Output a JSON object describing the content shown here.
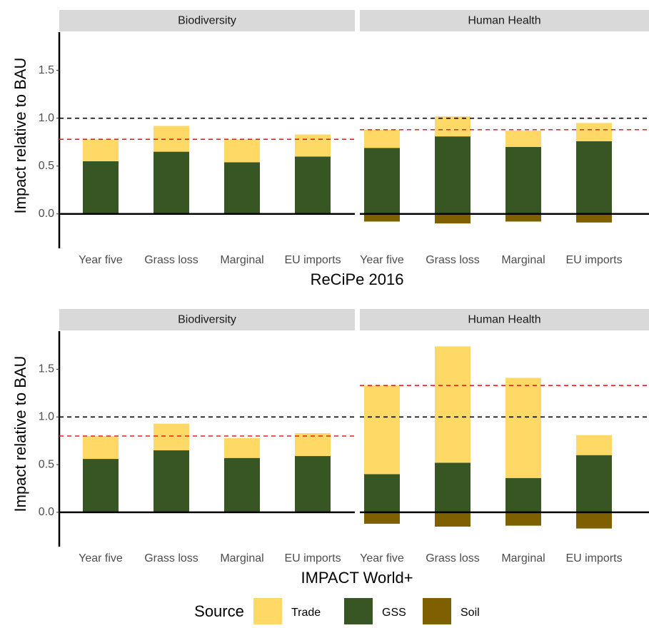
{
  "chart_data": [
    {
      "type": "bar",
      "stacked": true,
      "xlabel": "ReCiPe 2016",
      "facets": [
        "Biodiversity",
        "Human Health"
      ],
      "categories": [
        "Year five",
        "Grass loss",
        "Marginal",
        "EU imports"
      ],
      "series": [
        {
          "values": [
            [
              0.23,
              0.27,
              0.24,
              0.23
            ],
            [
              0.19,
              0.21,
              0.17,
              0.19
            ]
          ]
        },
        {
          "values": [
            [
              0.55,
              0.65,
              0.54,
              0.6
            ],
            [
              0.69,
              0.81,
              0.7,
              0.76
            ]
          ]
        },
        {
          "values": [
            [
              0,
              0,
              0,
              0
            ],
            [
              -0.08,
              -0.1,
              -0.08,
              -0.09
            ]
          ]
        }
      ],
      "mean_lines": [
        0.78,
        0.88
      ],
      "ylim": [
        -0.36,
        1.9
      ],
      "yticks": [
        {
          "value": 0,
          "label": "0.0"
        },
        0.5,
        {
          "value": 1,
          "label": "1.0"
        },
        1.5
      ]
    },
    {
      "type": "bar",
      "stacked": true,
      "xlabel": "IMPACT World+",
      "facets": [
        "Biodiversity",
        "Human Health"
      ],
      "categories": [
        "Year five",
        "Grass loss",
        "Marginal",
        "EU imports"
      ],
      "series": [
        {
          "values": [
            [
              0.24,
              0.28,
              0.21,
              0.24
            ],
            [
              0.93,
              1.22,
              1.05,
              0.21
            ]
          ]
        },
        {
          "values": [
            [
              0.56,
              0.65,
              0.57,
              0.59
            ],
            [
              0.4,
              0.52,
              0.36,
              0.6
            ]
          ]
        },
        {
          "values": [
            [
              0,
              0,
              0,
              0
            ],
            [
              -0.12,
              -0.15,
              -0.14,
              -0.17
            ]
          ]
        }
      ],
      "mean_lines": [
        0.8,
        1.33
      ],
      "ylim": [
        -0.36,
        1.9
      ],
      "yticks": [
        {
          "value": 0,
          "label": "0.0"
        },
        0.5,
        {
          "value": 1,
          "label": "1.0"
        },
        1.5
      ]
    }
  ],
  "y_label": "Impact relative to BAU",
  "reference_line": 1,
  "reference_color": "#000000",
  "mean_color": "#e8201a",
  "legend": {
    "title": "Source",
    "entries": [
      "Trade",
      "GSS",
      "Soil"
    ],
    "colors": [
      "#fed966",
      "#375623",
      "#7f6000"
    ]
  }
}
